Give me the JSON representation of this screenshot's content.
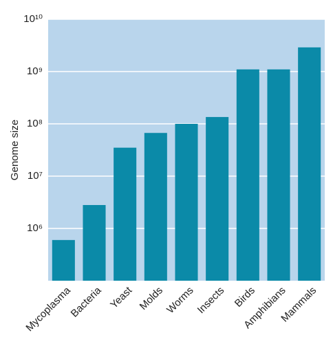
{
  "chart_data": {
    "type": "bar",
    "y_label": "Genome size",
    "categories": [
      "Mycoplasma",
      "Bacteria",
      "Yeast",
      "Molds",
      "Worms",
      "Insects",
      "Birds",
      "Amphibians",
      "Mammals"
    ],
    "values": [
      600000,
      2800000,
      35000000,
      67000000,
      100000000,
      135000000,
      1100000000,
      1100000000,
      2900000000
    ],
    "color": "#0b8aa8",
    "background": "#b9d5ec",
    "log_scale": true,
    "grid": true,
    "ylim": [
      100000,
      10000000000
    ],
    "yticks": [
      {
        "value": 1000000,
        "label": "10⁶"
      },
      {
        "value": 10000000,
        "label": "10⁷"
      },
      {
        "value": 100000000,
        "label": "10⁸"
      },
      {
        "value": 1000000000,
        "label": "10⁹"
      },
      {
        "value": 10000000000,
        "label": "10¹⁰"
      }
    ]
  }
}
